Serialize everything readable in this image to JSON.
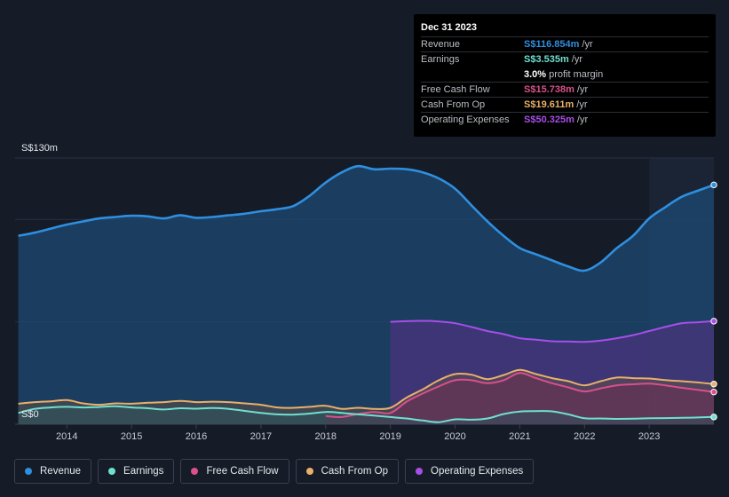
{
  "tooltip": {
    "date": "Dec 31 2023",
    "rows": [
      {
        "label": "Revenue",
        "value": "S$116.854m",
        "unit": "/yr",
        "color": "#2e8fe0"
      },
      {
        "label": "Earnings",
        "value": "S$3.535m",
        "unit": "/yr",
        "color": "#6fe0cf"
      },
      {
        "label": "",
        "value": "3.0%",
        "unit": "profit margin",
        "color": "#ffffff"
      },
      {
        "label": "Free Cash Flow",
        "value": "S$15.738m",
        "unit": "/yr",
        "color": "#d9508b"
      },
      {
        "label": "Cash From Op",
        "value": "S$19.611m",
        "unit": "/yr",
        "color": "#e8b06a"
      },
      {
        "label": "Operating Expenses",
        "value": "S$50.325m",
        "unit": "/yr",
        "color": "#a74ee8"
      }
    ]
  },
  "legend": [
    {
      "label": "Revenue",
      "color": "#2e8fe0"
    },
    {
      "label": "Earnings",
      "color": "#6fe0cf"
    },
    {
      "label": "Free Cash Flow",
      "color": "#d9508b"
    },
    {
      "label": "Cash From Op",
      "color": "#e8b06a"
    },
    {
      "label": "Operating Expenses",
      "color": "#a74ee8"
    }
  ],
  "chart_data": {
    "type": "area",
    "ylabel_top": "S$130m",
    "ylabel_bottom": "S$0",
    "ylim": [
      0,
      130
    ],
    "xlim": [
      2013.2,
      2024.0
    ],
    "xticks": [
      2014,
      2015,
      2016,
      2017,
      2018,
      2019,
      2020,
      2021,
      2022,
      2023
    ],
    "highlight_start": 2023.0,
    "series": [
      {
        "name": "Revenue",
        "color": "#2e8fe0",
        "fill": true,
        "points": [
          [
            2013.25,
            92
          ],
          [
            2013.5,
            93.5
          ],
          [
            2013.75,
            95.5
          ],
          [
            2014.0,
            97.5
          ],
          [
            2014.25,
            99
          ],
          [
            2014.5,
            100.5
          ],
          [
            2014.75,
            101.2
          ],
          [
            2015.0,
            101.8
          ],
          [
            2015.25,
            101.5
          ],
          [
            2015.5,
            100.5
          ],
          [
            2015.75,
            102
          ],
          [
            2016.0,
            100.8
          ],
          [
            2016.25,
            101.2
          ],
          [
            2016.5,
            102
          ],
          [
            2016.75,
            102.8
          ],
          [
            2017.0,
            104
          ],
          [
            2017.25,
            105
          ],
          [
            2017.5,
            106.5
          ],
          [
            2017.75,
            111.5
          ],
          [
            2018.0,
            118
          ],
          [
            2018.25,
            123
          ],
          [
            2018.5,
            126
          ],
          [
            2018.75,
            124.5
          ],
          [
            2019.0,
            124.8
          ],
          [
            2019.25,
            124.5
          ],
          [
            2019.5,
            123
          ],
          [
            2019.75,
            120
          ],
          [
            2020.0,
            115
          ],
          [
            2020.25,
            107
          ],
          [
            2020.5,
            99
          ],
          [
            2020.75,
            92
          ],
          [
            2021.0,
            86
          ],
          [
            2021.25,
            83
          ],
          [
            2021.5,
            80
          ],
          [
            2021.75,
            77
          ],
          [
            2022.0,
            75
          ],
          [
            2022.25,
            79
          ],
          [
            2022.5,
            86
          ],
          [
            2022.75,
            92
          ],
          [
            2023.0,
            100.5
          ],
          [
            2023.25,
            106
          ],
          [
            2023.5,
            111
          ],
          [
            2023.75,
            114
          ],
          [
            2024.0,
            116.854
          ]
        ]
      },
      {
        "name": "Operating Expenses",
        "color": "#a74ee8",
        "fill": true,
        "points": [
          [
            2019.0,
            50
          ],
          [
            2019.25,
            50.3
          ],
          [
            2019.5,
            50.5
          ],
          [
            2019.75,
            50.2
          ],
          [
            2020.0,
            49.3
          ],
          [
            2020.25,
            47.5
          ],
          [
            2020.5,
            45.5
          ],
          [
            2020.75,
            44
          ],
          [
            2021.0,
            42
          ],
          [
            2021.25,
            41.3
          ],
          [
            2021.5,
            40.5
          ],
          [
            2021.75,
            40.4
          ],
          [
            2022.0,
            40.2
          ],
          [
            2022.25,
            40.8
          ],
          [
            2022.5,
            42
          ],
          [
            2022.75,
            43.5
          ],
          [
            2023.0,
            45.5
          ],
          [
            2023.25,
            47.5
          ],
          [
            2023.5,
            49.3
          ],
          [
            2023.75,
            49.8
          ],
          [
            2024.0,
            50.325
          ]
        ]
      },
      {
        "name": "Cash From Op",
        "color": "#e8b06a",
        "fill": true,
        "points": [
          [
            2013.25,
            10
          ],
          [
            2013.5,
            10.8
          ],
          [
            2013.75,
            11.2
          ],
          [
            2014.0,
            11.8
          ],
          [
            2014.25,
            10.2
          ],
          [
            2014.5,
            9.5
          ],
          [
            2014.75,
            10.2
          ],
          [
            2015.0,
            10
          ],
          [
            2015.25,
            10.5
          ],
          [
            2015.5,
            10.8
          ],
          [
            2015.75,
            11.4
          ],
          [
            2016.0,
            10.8
          ],
          [
            2016.25,
            11
          ],
          [
            2016.5,
            10.8
          ],
          [
            2016.75,
            10.2
          ],
          [
            2017.0,
            9.5
          ],
          [
            2017.25,
            8.2
          ],
          [
            2017.5,
            8
          ],
          [
            2017.75,
            8.5
          ],
          [
            2018.0,
            9
          ],
          [
            2018.25,
            7.5
          ],
          [
            2018.5,
            8
          ],
          [
            2018.75,
            7.5
          ],
          [
            2019.0,
            8
          ],
          [
            2019.25,
            13
          ],
          [
            2019.5,
            17
          ],
          [
            2019.75,
            21.5
          ],
          [
            2020.0,
            24.5
          ],
          [
            2020.25,
            24.2
          ],
          [
            2020.5,
            22
          ],
          [
            2020.75,
            24
          ],
          [
            2021.0,
            26.5
          ],
          [
            2021.25,
            24.5
          ],
          [
            2021.5,
            22.5
          ],
          [
            2021.75,
            21
          ],
          [
            2022.0,
            19
          ],
          [
            2022.25,
            21
          ],
          [
            2022.5,
            22.8
          ],
          [
            2022.75,
            22.5
          ],
          [
            2023.0,
            22.3
          ],
          [
            2023.25,
            21.6
          ],
          [
            2023.5,
            21
          ],
          [
            2023.75,
            20.4
          ],
          [
            2024.0,
            19.611
          ]
        ]
      },
      {
        "name": "Free Cash Flow",
        "color": "#d9508b",
        "fill": true,
        "points": [
          [
            2018.0,
            4
          ],
          [
            2018.25,
            3.5
          ],
          [
            2018.5,
            5
          ],
          [
            2018.75,
            6
          ],
          [
            2019.0,
            5.5
          ],
          [
            2019.25,
            11
          ],
          [
            2019.5,
            15
          ],
          [
            2019.75,
            18.5
          ],
          [
            2020.0,
            21.5
          ],
          [
            2020.25,
            21.5
          ],
          [
            2020.5,
            20
          ],
          [
            2020.75,
            21.5
          ],
          [
            2021.0,
            25
          ],
          [
            2021.25,
            22.5
          ],
          [
            2021.5,
            20
          ],
          [
            2021.75,
            18
          ],
          [
            2022.0,
            16
          ],
          [
            2022.25,
            17.5
          ],
          [
            2022.5,
            19
          ],
          [
            2022.75,
            19.5
          ],
          [
            2023.0,
            19.8
          ],
          [
            2023.25,
            19
          ],
          [
            2023.5,
            17.8
          ],
          [
            2023.75,
            16.8
          ],
          [
            2024.0,
            15.738
          ]
        ]
      },
      {
        "name": "Earnings",
        "color": "#6fe0cf",
        "fill": true,
        "points": [
          [
            2013.25,
            5.5
          ],
          [
            2013.5,
            7.5
          ],
          [
            2013.75,
            8.2
          ],
          [
            2014.0,
            8.5
          ],
          [
            2014.25,
            8.2
          ],
          [
            2014.5,
            8.4
          ],
          [
            2014.75,
            8.8
          ],
          [
            2015.0,
            8.2
          ],
          [
            2015.25,
            7.8
          ],
          [
            2015.5,
            7.2
          ],
          [
            2015.75,
            7.8
          ],
          [
            2016.0,
            7.6
          ],
          [
            2016.25,
            7.9
          ],
          [
            2016.5,
            7.5
          ],
          [
            2016.75,
            6.5
          ],
          [
            2017.0,
            5.5
          ],
          [
            2017.25,
            4.8
          ],
          [
            2017.5,
            4.7
          ],
          [
            2017.75,
            5.2
          ],
          [
            2018.0,
            6
          ],
          [
            2018.25,
            5.5
          ],
          [
            2018.5,
            4.8
          ],
          [
            2018.75,
            4.2
          ],
          [
            2019.0,
            3.5
          ],
          [
            2019.25,
            2.8
          ],
          [
            2019.5,
            1.8
          ],
          [
            2019.75,
            1
          ],
          [
            2020.0,
            2.4
          ],
          [
            2020.25,
            2.2
          ],
          [
            2020.5,
            2.8
          ],
          [
            2020.75,
            5
          ],
          [
            2021.0,
            6.2
          ],
          [
            2021.25,
            6.4
          ],
          [
            2021.5,
            6.3
          ],
          [
            2021.75,
            4.8
          ],
          [
            2022.0,
            2.9
          ],
          [
            2022.25,
            2.8
          ],
          [
            2022.5,
            2.6
          ],
          [
            2022.75,
            2.7
          ],
          [
            2023.0,
            2.9
          ],
          [
            2023.25,
            3
          ],
          [
            2023.5,
            3.1
          ],
          [
            2023.75,
            3.3
          ],
          [
            2024.0,
            3.535
          ]
        ]
      }
    ]
  }
}
